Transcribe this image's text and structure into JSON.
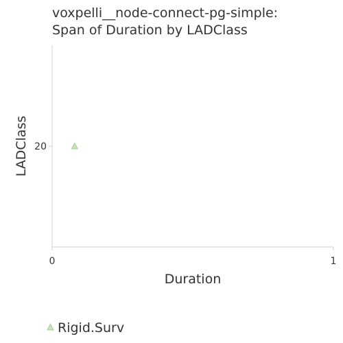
{
  "chart_data": {
    "type": "scatter",
    "title": [
      "voxpelli__node-connect-pg-simple:",
      "Span of Duration by LADClass"
    ],
    "xlabel": "Duration",
    "ylabel": "LADClass",
    "xlim": [
      0,
      1
    ],
    "ylim": [
      15,
      25
    ],
    "x_ticks": [
      "0",
      "1"
    ],
    "y_ticks": [
      "20"
    ],
    "grid": false,
    "legend_position": "bottom-left",
    "series": [
      {
        "name": "Rigid.Surv",
        "marker": "triangle",
        "color": "#a6d196",
        "points": [
          {
            "x": 0.08,
            "y": 20
          }
        ]
      }
    ]
  }
}
